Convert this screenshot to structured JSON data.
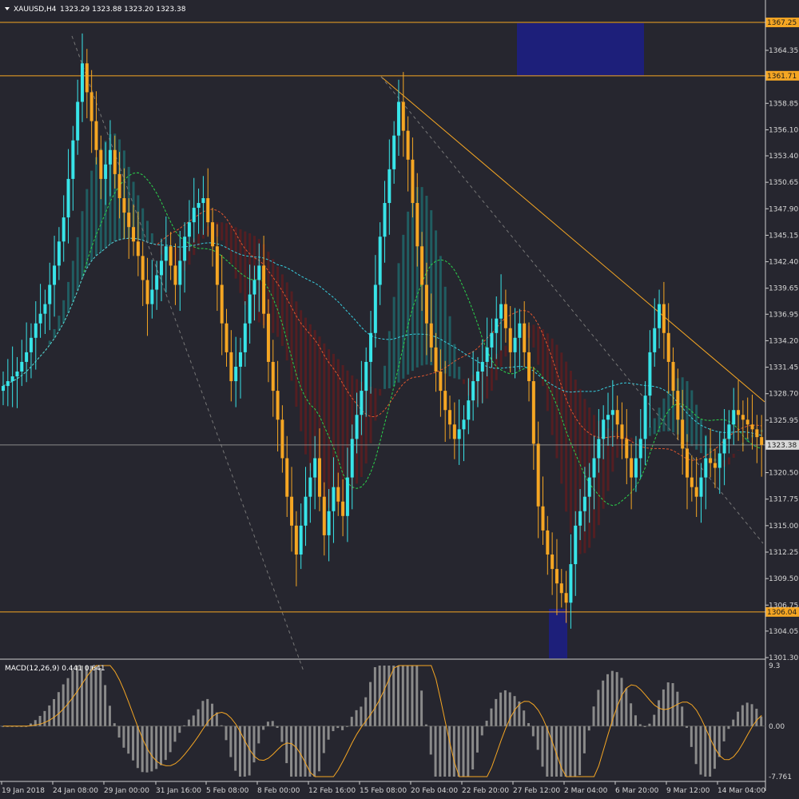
{
  "header": {
    "symbol": "XAUUSD,H4",
    "ohlc": "1323.29 1323.88 1323.20 1323.38"
  },
  "macd_header": "MACD(12,26,9) 0.441 0.641",
  "colors": {
    "background": "#26262f",
    "bull": "#38e4e8",
    "bear": "#f5a623",
    "level_line": "#f5a623",
    "zone": "#1d1f7a",
    "cloud_bull": "#1c8a8a",
    "cloud_bear": "#7a1818",
    "macd_hist": "#8a8a8a",
    "macd_signal": "#f5a623"
  },
  "chart_data": [
    {
      "type": "candlestick",
      "panel": "price",
      "y_ticks": [
        "1364.35",
        "1358.85",
        "1356.10",
        "1353.40",
        "1350.65",
        "1347.90",
        "1345.15",
        "1342.40",
        "1339.65",
        "1336.95",
        "1334.20",
        "1331.45",
        "1328.70",
        "1325.95",
        "1320.50",
        "1317.75",
        "1315.00",
        "1312.25",
        "1309.50",
        "1306.75",
        "1304.05",
        "1301.30"
      ],
      "ylim": [
        1301.3,
        1368.3
      ],
      "x_ticks": [
        "19 Jan 2018",
        "24 Jan 08:00",
        "29 Jan 00:00",
        "31 Jan 16:00",
        "5 Feb 08:00",
        "8 Feb 00:00",
        "12 Feb 16:00",
        "15 Feb 08:00",
        "20 Feb 04:00",
        "22 Feb 20:00",
        "27 Feb 12:00",
        "2 Mar 04:00",
        "6 Mar 20:00",
        "9 Mar 12:00",
        "14 Mar 04:00"
      ],
      "horizontal_levels": [
        {
          "label": "1367.25",
          "value": 1367.25
        },
        {
          "label": "1361.71",
          "value": 1361.71
        },
        {
          "label": "1306.04",
          "value": 1306.04
        }
      ],
      "current_price": {
        "label": "1323.38",
        "value": 1323.38
      },
      "closes": [
        1330,
        1331,
        1333,
        1336,
        1338,
        1342,
        1347,
        1355,
        1363,
        1357,
        1351,
        1354,
        1349,
        1346,
        1343,
        1338,
        1341,
        1344,
        1340,
        1345,
        1348,
        1349,
        1344,
        1336,
        1330,
        1333,
        1339,
        1342,
        1332,
        1326,
        1318,
        1312,
        1318,
        1322,
        1314,
        1319,
        1316,
        1324,
        1329,
        1335,
        1345,
        1352,
        1359,
        1353,
        1344,
        1336,
        1331,
        1327,
        1324,
        1326,
        1330,
        1332,
        1335,
        1338,
        1333,
        1336,
        1330,
        1317,
        1312,
        1309,
        1307,
        1315,
        1318,
        1322,
        1326,
        1327,
        1324,
        1320,
        1324,
        1333,
        1338,
        1332,
        1326,
        1320,
        1318,
        1322,
        1321,
        1324,
        1327,
        1326,
        1325,
        1323.38
      ],
      "ichimoku": "cloud with tenkan/kijun lines"
    },
    {
      "type": "bar",
      "panel": "indicator",
      "name": "MACD(12,26,9)",
      "y_ticks": [
        "9.3",
        "0.00",
        "-7.761"
      ],
      "ylim": [
        -7.761,
        9.3
      ],
      "main": 0.441,
      "signal": 0.641
    }
  ]
}
